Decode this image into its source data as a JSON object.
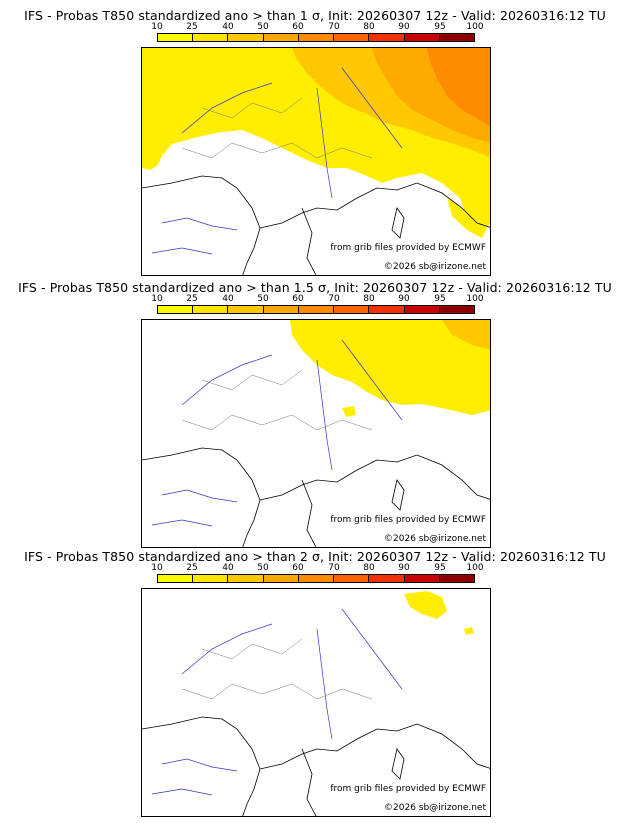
{
  "colorbar": {
    "labels": [
      "10",
      "25",
      "40",
      "50",
      "60",
      "70",
      "80",
      "90",
      "95",
      "100"
    ],
    "colors": [
      "#ffff00",
      "#ffe600",
      "#ffc800",
      "#ffaa00",
      "#ff8c00",
      "#ff6400",
      "#f03200",
      "#c80000",
      "#8c0000"
    ]
  },
  "panels": [
    {
      "title": "IFS - Probas T850  standardized ano > than 1 σ, Init: 20260307 12z - Valid: 20260316:12 TU",
      "source": "from grib files provided by ECMWF",
      "copyright": "©2026 sb@irizone.net"
    },
    {
      "title": "IFS - Probas T850  standardized ano > than 1.5 σ, Init: 20260307 12z - Valid: 20260316:12 TU",
      "source": "from grib files provided by ECMWF",
      "copyright": "©2026 sb@irizone.net"
    },
    {
      "title": "IFS - Probas T850  standardized ano > than 2 σ, Init: 20260307 12z - Valid: 20260316:12 TU",
      "source": "from grib files provided by ECMWF",
      "copyright": "©2026 sb@irizone.net"
    }
  ]
}
